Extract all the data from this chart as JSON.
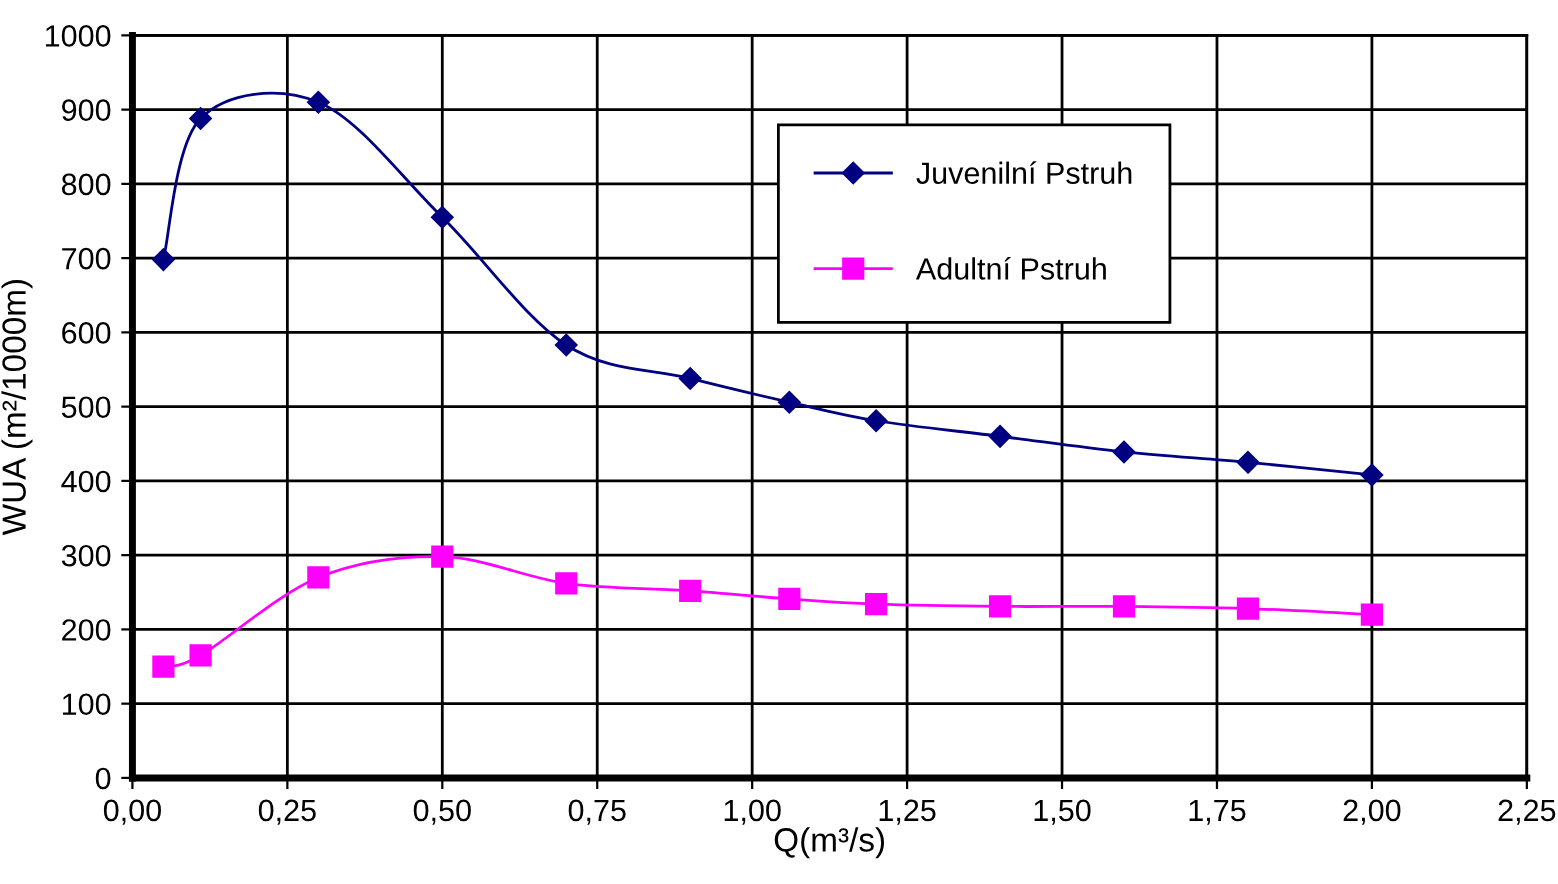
{
  "chart_data": {
    "type": "line",
    "xlabel": "Q(m³/s)",
    "ylabel": "WUA (m²/1000m)",
    "x": [
      0.05,
      0.11,
      0.3,
      0.5,
      0.7,
      0.9,
      1.06,
      1.2,
      1.4,
      1.6,
      1.8,
      2.0
    ],
    "series": [
      {
        "name": "Juvenilní Pstruh",
        "color": "#000080",
        "marker": "diamond",
        "values": [
          698,
          888,
          910,
          755,
          583,
          538,
          506,
          481,
          460,
          439,
          425,
          408
        ]
      },
      {
        "name": "Adultní Pstruh",
        "color": "#ff00ff",
        "marker": "square",
        "values": [
          150,
          165,
          270,
          298,
          262,
          252,
          241,
          234,
          231,
          231,
          228,
          220
        ]
      }
    ],
    "xlim": [
      0,
      2.25
    ],
    "xticks": [
      {
        "value": 0,
        "label": "0,00"
      },
      {
        "value": 0.25,
        "label": "0,25"
      },
      {
        "value": 0.5,
        "label": "0,50"
      },
      {
        "value": 0.75,
        "label": "0,75"
      },
      {
        "value": 1.0,
        "label": "1,00"
      },
      {
        "value": 1.25,
        "label": "1,25"
      },
      {
        "value": 1.5,
        "label": "1,50"
      },
      {
        "value": 1.75,
        "label": "1,75"
      },
      {
        "value": 2.0,
        "label": "2,00"
      },
      {
        "value": 2.25,
        "label": "2,25"
      }
    ],
    "ylim": [
      0,
      1000
    ],
    "yticks": [
      0,
      100,
      200,
      300,
      400,
      500,
      600,
      700,
      800,
      900,
      1000
    ],
    "grid": true,
    "legend": "top right",
    "line_style": "solid"
  }
}
